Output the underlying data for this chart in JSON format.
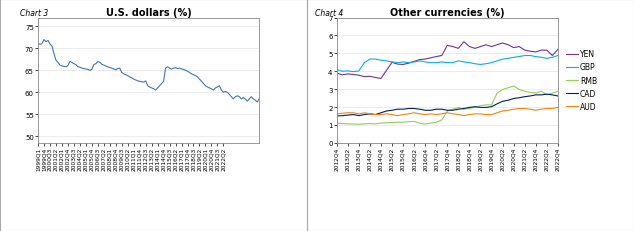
{
  "chart3_title": "U.S. dollars (%)",
  "chart3_label": "Chart 3",
  "chart3_ylabel_ticks": [
    50,
    55,
    60,
    65,
    70,
    75
  ],
  "chart3_ylim": [
    48.5,
    77
  ],
  "chart3_color": "#4472C4",
  "chart4_title": "Other currencies (%)",
  "chart4_label": "Chart 4",
  "chart4_ylim": [
    0,
    7
  ],
  "chart4_yticks": [
    0,
    1,
    2,
    3,
    4,
    5,
    6,
    7
  ],
  "currencies": [
    "YEN",
    "GBP",
    "RMB",
    "CAD",
    "AUD"
  ],
  "colors": {
    "YEN": "#7030A0",
    "GBP": "#00B0F0",
    "RMB": "#92D050",
    "CAD": "#002060",
    "AUD": "#FF8000"
  },
  "chart3_data": [
    71.1,
    70.9,
    71.1,
    72.0,
    71.5,
    71.8,
    71.0,
    70.5,
    68.8,
    67.3,
    66.8,
    66.2,
    66.0,
    65.9,
    65.8,
    66.1,
    67.0,
    66.8,
    66.5,
    66.3,
    65.8,
    65.7,
    65.5,
    65.4,
    65.3,
    65.2,
    65.0,
    65.2,
    66.3,
    66.5,
    67.0,
    66.8,
    66.4,
    66.2,
    66.0,
    65.8,
    65.6,
    65.5,
    65.3,
    65.1,
    65.4,
    65.5,
    64.5,
    64.2,
    64.0,
    63.8,
    63.5,
    63.3,
    63.0,
    62.8,
    62.6,
    62.5,
    62.4,
    62.3,
    62.6,
    61.5,
    61.2,
    61.0,
    60.8,
    60.5,
    61.0,
    61.5,
    62.0,
    62.5,
    65.5,
    65.8,
    65.5,
    65.3,
    65.5,
    65.6,
    65.4,
    65.5,
    65.3,
    65.2,
    65.0,
    64.8,
    64.5,
    64.2,
    64.0,
    63.8,
    63.5,
    63.0,
    62.5,
    62.0,
    61.5,
    61.2,
    61.0,
    60.8,
    60.5,
    61.0,
    61.2,
    61.5,
    60.5,
    60.0,
    60.2,
    60.0,
    59.5,
    59.0,
    58.5,
    59.0,
    59.2,
    59.0,
    58.5,
    58.8,
    58.5,
    58.0,
    58.5,
    59.0,
    58.5,
    58.2,
    57.8,
    58.5
  ],
  "chart4_data": {
    "YEN": [
      3.9,
      3.8,
      3.85,
      3.82,
      3.78,
      3.7,
      3.72,
      3.65,
      3.6,
      4.05,
      4.5,
      4.4,
      4.38,
      4.45,
      4.55,
      4.65,
      4.68,
      4.75,
      4.82,
      4.88,
      5.45,
      5.38,
      5.28,
      5.65,
      5.38,
      5.28,
      5.38,
      5.48,
      5.38,
      5.48,
      5.58,
      5.48,
      5.32,
      5.38,
      5.18,
      5.12,
      5.08,
      5.18,
      5.18,
      4.88,
      5.22
    ],
    "GBP": [
      4.1,
      4.0,
      4.02,
      3.98,
      4.02,
      4.48,
      4.68,
      4.68,
      4.62,
      4.58,
      4.52,
      4.48,
      4.52,
      4.48,
      4.52,
      4.58,
      4.52,
      4.48,
      4.48,
      4.52,
      4.48,
      4.48,
      4.58,
      4.52,
      4.48,
      4.42,
      4.38,
      4.42,
      4.48,
      4.58,
      4.68,
      4.72,
      4.78,
      4.82,
      4.88,
      4.88,
      4.82,
      4.78,
      4.72,
      4.78,
      4.88
    ],
    "RMB": [
      1.1,
      1.08,
      1.06,
      1.05,
      1.04,
      1.06,
      1.08,
      1.06,
      1.1,
      1.12,
      1.14,
      1.15,
      1.16,
      1.18,
      1.2,
      1.1,
      1.05,
      1.1,
      1.15,
      1.28,
      1.78,
      1.88,
      1.98,
      1.88,
      1.92,
      1.98,
      2.08,
      2.12,
      2.12,
      2.78,
      2.98,
      3.08,
      3.18,
      2.98,
      2.88,
      2.82,
      2.78,
      2.88,
      2.68,
      2.78,
      2.88
    ],
    "CAD": [
      1.5,
      1.52,
      1.55,
      1.58,
      1.52,
      1.58,
      1.62,
      1.58,
      1.68,
      1.78,
      1.82,
      1.88,
      1.88,
      1.92,
      1.92,
      1.88,
      1.82,
      1.82,
      1.88,
      1.88,
      1.82,
      1.82,
      1.88,
      1.92,
      1.98,
      2.02,
      1.98,
      1.98,
      2.02,
      2.18,
      2.32,
      2.38,
      2.48,
      2.52,
      2.58,
      2.62,
      2.68,
      2.68,
      2.72,
      2.68,
      2.62
    ],
    "AUD": [
      1.62,
      1.65,
      1.68,
      1.68,
      1.62,
      1.68,
      1.62,
      1.58,
      1.58,
      1.62,
      1.58,
      1.52,
      1.58,
      1.62,
      1.68,
      1.62,
      1.58,
      1.62,
      1.58,
      1.62,
      1.68,
      1.62,
      1.58,
      1.52,
      1.58,
      1.62,
      1.62,
      1.58,
      1.58,
      1.68,
      1.78,
      1.82,
      1.88,
      1.92,
      1.92,
      1.88,
      1.82,
      1.88,
      1.92,
      1.92,
      1.98
    ]
  }
}
